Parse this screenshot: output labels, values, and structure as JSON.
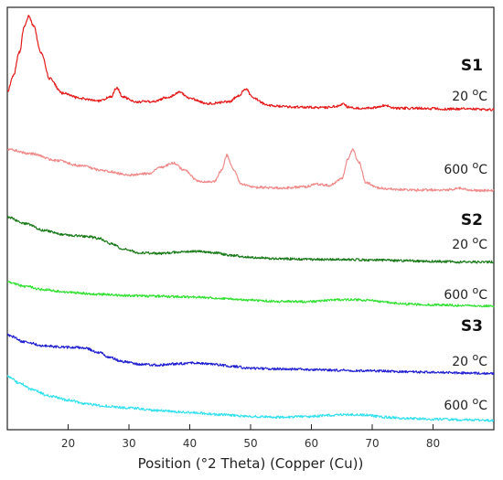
{
  "chart_data": {
    "type": "line",
    "xlabel": "Position (°2 Theta) (Copper (Cu))",
    "ylabel": "",
    "xlim": [
      10,
      90
    ],
    "x_ticks": [
      "20",
      "30",
      "40",
      "50",
      "60",
      "70",
      "80"
    ],
    "y_ticks_shown": false,
    "grid": false,
    "legend": "none",
    "sample_labels": [
      "S1",
      "S2",
      "S3"
    ],
    "series": [
      {
        "sample": "S1",
        "temp": "20",
        "unit": "C",
        "color": "#e41a1a",
        "x": [
          10,
          11,
          12,
          12.8,
          13.5,
          14.3,
          15.5,
          17,
          19,
          22,
          25,
          27,
          28,
          29,
          31,
          34,
          36.5,
          38.3,
          40,
          43,
          46.5,
          48,
          49.2,
          50.5,
          53,
          57,
          62,
          64.5,
          65.2,
          66,
          68,
          70.5,
          72,
          74,
          78,
          82,
          86,
          90
        ],
        "y": [
          0.3,
          0.55,
          0.9,
          1.3,
          1.45,
          1.3,
          0.9,
          0.5,
          0.28,
          0.2,
          0.16,
          0.22,
          0.36,
          0.22,
          0.15,
          0.15,
          0.22,
          0.3,
          0.2,
          0.12,
          0.15,
          0.24,
          0.34,
          0.2,
          0.09,
          0.07,
          0.06,
          0.08,
          0.13,
          0.07,
          0.05,
          0.06,
          0.09,
          0.05,
          0.05,
          0.04,
          0.04,
          0.03
        ]
      },
      {
        "sample": "S1",
        "temp": "600",
        "unit": "C",
        "color": "#f08a8a",
        "x": [
          10,
          14,
          18,
          22,
          26,
          30,
          33,
          35.5,
          37.3,
          39,
          41.5,
          44,
          45.2,
          46.1,
          47.2,
          48.5,
          51,
          55,
          59,
          61,
          63,
          65,
          66,
          66.8,
          67.8,
          69,
          71,
          74,
          78,
          82,
          84.5,
          86,
          88,
          90
        ],
        "y": [
          0.65,
          0.58,
          0.48,
          0.4,
          0.32,
          0.26,
          0.28,
          0.38,
          0.44,
          0.34,
          0.16,
          0.16,
          0.32,
          0.56,
          0.34,
          0.12,
          0.07,
          0.06,
          0.08,
          0.12,
          0.1,
          0.2,
          0.5,
          0.65,
          0.45,
          0.14,
          0.06,
          0.04,
          0.03,
          0.03,
          0.06,
          0.03,
          0.02,
          0.02
        ]
      },
      {
        "sample": "S2",
        "temp": "20",
        "unit": "C",
        "color": "#1a7a1a",
        "x": [
          10,
          13,
          16,
          19,
          21,
          23,
          25,
          27,
          29,
          32,
          35,
          38,
          41,
          44,
          47,
          50,
          55,
          60,
          65,
          70,
          75,
          80,
          85,
          90
        ],
        "y": [
          0.7,
          0.6,
          0.5,
          0.44,
          0.42,
          0.41,
          0.38,
          0.3,
          0.22,
          0.16,
          0.15,
          0.17,
          0.18,
          0.16,
          0.12,
          0.09,
          0.07,
          0.06,
          0.06,
          0.05,
          0.04,
          0.03,
          0.02,
          0.02
        ]
      },
      {
        "sample": "S2",
        "temp": "600",
        "unit": "C",
        "color": "#33e033",
        "x": [
          10,
          13,
          16,
          20,
          25,
          30,
          35,
          40,
          45,
          50,
          55,
          60,
          63,
          66,
          69,
          72,
          76,
          80,
          85,
          90
        ],
        "y": [
          0.4,
          0.33,
          0.28,
          0.24,
          0.21,
          0.19,
          0.18,
          0.17,
          0.15,
          0.12,
          0.1,
          0.1,
          0.12,
          0.13,
          0.12,
          0.09,
          0.06,
          0.05,
          0.04,
          0.03
        ]
      },
      {
        "sample": "S3",
        "temp": "20",
        "unit": "C",
        "color": "#1f1fd0",
        "x": [
          10,
          13,
          16,
          19,
          21,
          23,
          25,
          27,
          29,
          32,
          35,
          38,
          41,
          44,
          47,
          50,
          55,
          60,
          65,
          70,
          75,
          80,
          85,
          90
        ],
        "y": [
          0.6,
          0.5,
          0.44,
          0.42,
          0.42,
          0.4,
          0.34,
          0.26,
          0.2,
          0.16,
          0.15,
          0.17,
          0.18,
          0.16,
          0.13,
          0.1,
          0.09,
          0.08,
          0.07,
          0.06,
          0.05,
          0.04,
          0.03,
          0.02
        ]
      },
      {
        "sample": "S3",
        "temp": "600",
        "unit": "C",
        "color": "#33e0ee",
        "x": [
          10,
          12,
          14,
          17,
          20,
          23,
          26,
          30,
          35,
          40,
          45,
          50,
          55,
          60,
          63,
          66,
          69,
          72,
          76,
          80,
          85,
          90
        ],
        "y": [
          0.7,
          0.6,
          0.5,
          0.4,
          0.34,
          0.28,
          0.25,
          0.22,
          0.18,
          0.15,
          0.12,
          0.09,
          0.08,
          0.09,
          0.11,
          0.12,
          0.11,
          0.08,
          0.06,
          0.05,
          0.04,
          0.03
        ]
      }
    ]
  }
}
